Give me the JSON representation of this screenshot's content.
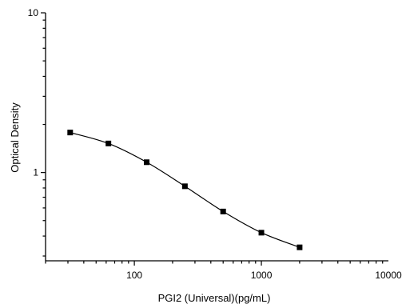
{
  "chart_data": {
    "type": "line",
    "title": "",
    "xlabel": "PGI2 (Universal)(pg/mL)",
    "ylabel": "Optical Density",
    "xscale": "log",
    "yscale": "log",
    "xlim": [
      20,
      10000
    ],
    "ylim": [
      0.28,
      10
    ],
    "grid": false,
    "legend": "none",
    "x_ticks": [
      {
        "value": 100,
        "label": "100"
      },
      {
        "value": 1000,
        "label": "1000"
      },
      {
        "value": 10000,
        "label": "10000"
      }
    ],
    "y_ticks": [
      {
        "value": 1,
        "label": "1"
      },
      {
        "value": 10,
        "label": "10"
      }
    ],
    "series": [
      {
        "marker": "square",
        "color": "#000000",
        "x": [
          31.25,
          62.5,
          125,
          250,
          500,
          1000,
          2000
        ],
        "y": [
          1.78,
          1.52,
          1.16,
          0.82,
          0.57,
          0.42,
          0.34
        ]
      }
    ]
  }
}
